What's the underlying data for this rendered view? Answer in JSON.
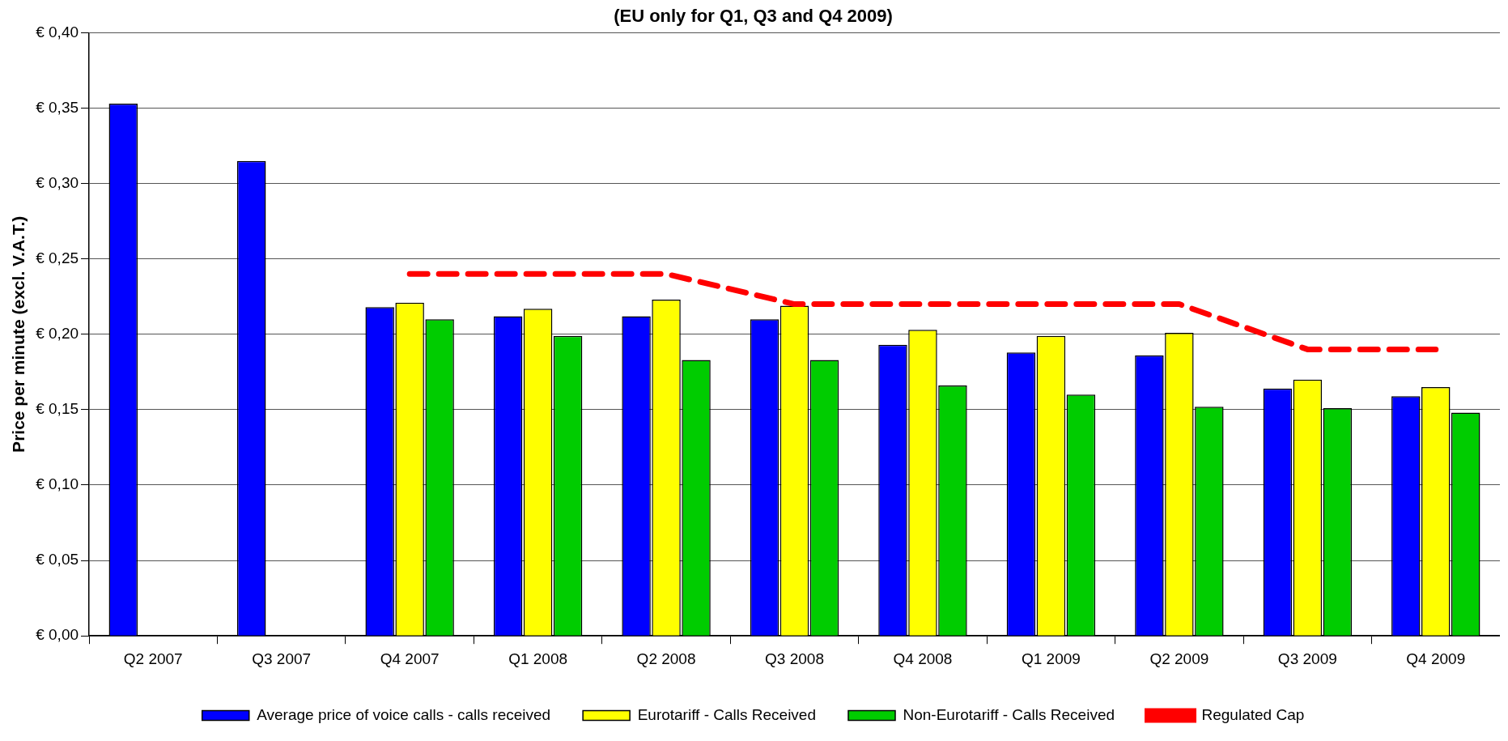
{
  "chart_data": {
    "type": "bar",
    "title": "(EU only for Q1, Q3 and Q4 2009)",
    "ylabel": "Price per minute (excl. V.A.T.)",
    "categories": [
      "Q2 2007",
      "Q3 2007",
      "Q4 2007",
      "Q1 2008",
      "Q2 2008",
      "Q3 2008",
      "Q4 2008",
      "Q1 2009",
      "Q2 2009",
      "Q3 2009",
      "Q4 2009"
    ],
    "series": [
      {
        "name": "Average price of voice calls - calls received",
        "color": "#0000ff",
        "values": [
          0.353,
          0.315,
          0.218,
          0.212,
          0.212,
          0.21,
          0.193,
          0.188,
          0.186,
          0.164,
          0.159
        ]
      },
      {
        "name": "Eurotariff - Calls Received",
        "color": "#ffff00",
        "values": [
          null,
          null,
          0.221,
          0.217,
          0.223,
          0.219,
          0.203,
          0.199,
          0.201,
          0.17,
          0.165
        ]
      },
      {
        "name": "Non-Eurotariff - Calls Received",
        "color": "#00cc00",
        "values": [
          null,
          null,
          0.21,
          0.199,
          0.183,
          0.183,
          0.166,
          0.16,
          0.152,
          0.151,
          0.148
        ]
      },
      {
        "name": "Regulated Cap",
        "type": "line",
        "color": "#ff0000",
        "line_style": "dashed",
        "marker": "none",
        "values": [
          null,
          null,
          0.24,
          0.24,
          0.24,
          0.22,
          0.22,
          0.22,
          0.22,
          0.19,
          0.19
        ]
      }
    ],
    "ylim": [
      0,
      0.4
    ],
    "yticks": [
      {
        "value": 0,
        "label": "€ 0,00"
      },
      {
        "value": 0.05,
        "label": "€ 0,05"
      },
      {
        "value": 0.1,
        "label": "€ 0,10"
      },
      {
        "value": 0.15,
        "label": "€ 0,15"
      },
      {
        "value": 0.2,
        "label": "€ 0,20"
      },
      {
        "value": 0.25,
        "label": "€ 0,25"
      },
      {
        "value": 0.3,
        "label": "€ 0,30"
      },
      {
        "value": 0.35,
        "label": "€ 0,35"
      },
      {
        "value": 0.4,
        "label": "€ 0,40"
      }
    ],
    "grid": "y",
    "legend": "bottom"
  }
}
